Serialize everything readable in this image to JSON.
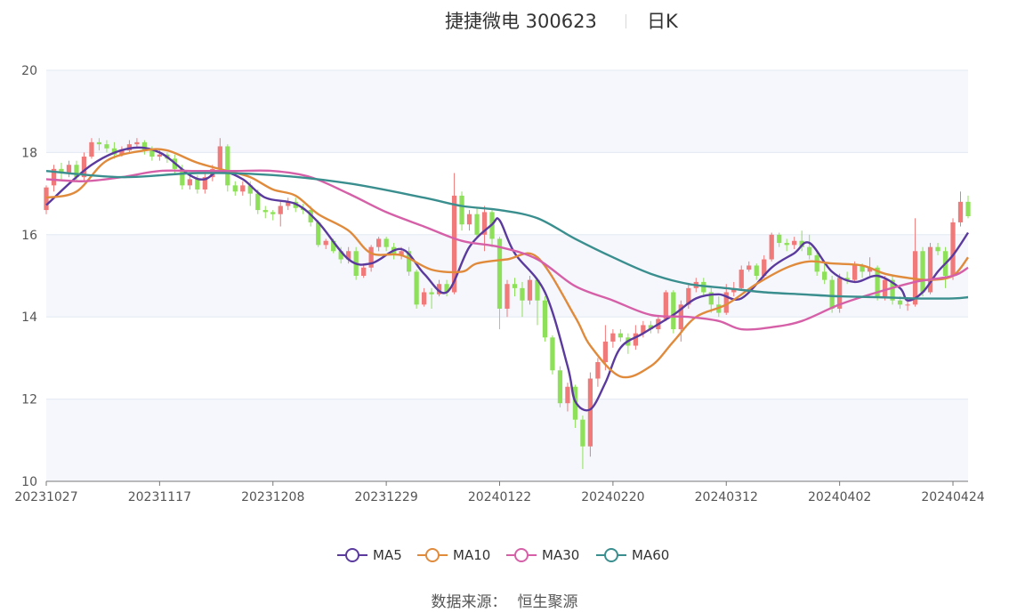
{
  "header": {
    "title": "捷捷微电 300623",
    "period": "日K"
  },
  "legend": [
    {
      "name": "MA5",
      "color": "#5b3a9e"
    },
    {
      "name": "MA10",
      "color": "#e08a3c"
    },
    {
      "name": "MA30",
      "color": "#d660a8"
    },
    {
      "name": "MA60",
      "color": "#3a8e8e"
    }
  ],
  "source": {
    "label": "数据来源：",
    "value": "恒生聚源"
  },
  "chart_data": {
    "type": "candlestick",
    "title": "捷捷微电 300623",
    "ylim": [
      10,
      20
    ],
    "yticks": [
      10,
      12,
      14,
      16,
      18,
      20
    ],
    "xtick_labels": [
      "20231027",
      "20231117",
      "20231208",
      "20231229",
      "20240122",
      "20240220",
      "20240312",
      "20240402",
      "20240424"
    ],
    "xtick_index": [
      0,
      15,
      30,
      45,
      60,
      75,
      90,
      105,
      120
    ],
    "colors": {
      "up": "#f07a7a",
      "down": "#8ee05a",
      "grid": "#e3e8f2",
      "band": "#f5f7fc",
      "axis": "#777777"
    },
    "candles": [
      [
        16.6,
        17.15,
        16.5,
        17.2
      ],
      [
        17.2,
        17.6,
        17.05,
        17.7
      ],
      [
        17.6,
        17.5,
        17.35,
        17.75
      ],
      [
        17.5,
        17.7,
        17.4,
        17.8
      ],
      [
        17.7,
        17.4,
        17.3,
        17.8
      ],
      [
        17.4,
        17.9,
        17.3,
        18.0
      ],
      [
        17.9,
        18.25,
        17.85,
        18.35
      ],
      [
        18.25,
        18.2,
        18.05,
        18.35
      ],
      [
        18.2,
        18.1,
        18.0,
        18.3
      ],
      [
        18.1,
        17.95,
        17.85,
        18.25
      ],
      [
        17.95,
        18.05,
        17.9,
        18.15
      ],
      [
        18.05,
        18.2,
        18.0,
        18.3
      ],
      [
        18.2,
        18.25,
        18.1,
        18.35
      ],
      [
        18.25,
        18.05,
        17.95,
        18.3
      ],
      [
        18.05,
        17.9,
        17.8,
        18.15
      ],
      [
        17.9,
        17.95,
        17.8,
        18.05
      ],
      [
        17.95,
        17.85,
        17.75,
        18.0
      ],
      [
        17.85,
        17.6,
        17.5,
        17.95
      ],
      [
        17.6,
        17.2,
        17.1,
        17.7
      ],
      [
        17.2,
        17.35,
        17.1,
        17.45
      ],
      [
        17.35,
        17.1,
        17.0,
        17.45
      ],
      [
        17.1,
        17.4,
        17.0,
        17.55
      ],
      [
        17.4,
        17.6,
        17.3,
        17.7
      ],
      [
        17.6,
        18.15,
        17.5,
        18.35
      ],
      [
        18.15,
        17.2,
        17.05,
        18.2
      ],
      [
        17.2,
        17.05,
        16.95,
        17.3
      ],
      [
        17.05,
        17.2,
        16.95,
        17.3
      ],
      [
        17.2,
        17.0,
        16.7,
        17.3
      ],
      [
        17.0,
        16.6,
        16.5,
        17.1
      ],
      [
        16.6,
        16.55,
        16.4,
        16.7
      ],
      [
        16.55,
        16.5,
        16.35,
        16.6
      ],
      [
        16.5,
        16.7,
        16.2,
        16.8
      ],
      [
        16.7,
        16.8,
        16.6,
        16.9
      ],
      [
        16.8,
        16.65,
        16.55,
        16.9
      ],
      [
        16.65,
        16.6,
        16.5,
        16.75
      ],
      [
        16.6,
        16.3,
        16.2,
        16.7
      ],
      [
        16.3,
        15.75,
        15.7,
        16.35
      ],
      [
        15.75,
        15.85,
        15.65,
        15.9
      ],
      [
        15.85,
        15.6,
        15.55,
        15.9
      ],
      [
        15.6,
        15.4,
        15.3,
        15.7
      ],
      [
        15.4,
        15.6,
        15.3,
        15.7
      ],
      [
        15.6,
        15.0,
        14.9,
        15.7
      ],
      [
        15.0,
        15.2,
        14.95,
        15.3
      ],
      [
        15.2,
        15.7,
        15.1,
        15.75
      ],
      [
        15.7,
        15.9,
        15.6,
        15.95
      ],
      [
        15.9,
        15.7,
        15.6,
        15.95
      ],
      [
        15.7,
        15.5,
        15.4,
        15.8
      ],
      [
        15.5,
        15.6,
        15.4,
        15.7
      ],
      [
        15.6,
        15.1,
        15.0,
        15.7
      ],
      [
        15.1,
        14.3,
        14.2,
        15.15
      ],
      [
        14.3,
        14.6,
        14.25,
        14.7
      ],
      [
        14.6,
        14.55,
        14.2,
        14.7
      ],
      [
        14.55,
        14.8,
        14.5,
        14.9
      ],
      [
        14.8,
        14.6,
        14.5,
        14.9
      ],
      [
        14.6,
        16.95,
        14.55,
        17.5
      ],
      [
        16.95,
        16.25,
        16.1,
        17.05
      ],
      [
        16.25,
        16.5,
        16.1,
        16.6
      ],
      [
        16.5,
        16.0,
        15.9,
        16.65
      ],
      [
        16.0,
        16.55,
        15.6,
        16.7
      ],
      [
        16.55,
        15.9,
        15.7,
        16.6
      ],
      [
        15.9,
        14.2,
        13.7,
        15.95
      ],
      [
        14.2,
        14.8,
        14.0,
        14.9
      ],
      [
        14.8,
        14.7,
        14.5,
        14.95
      ],
      [
        14.7,
        14.4,
        14.0,
        14.85
      ],
      [
        14.4,
        14.9,
        14.3,
        15.0
      ],
      [
        14.9,
        14.4,
        13.8,
        14.95
      ],
      [
        14.4,
        13.5,
        13.4,
        14.5
      ],
      [
        13.5,
        12.7,
        12.6,
        13.55
      ],
      [
        12.7,
        11.9,
        11.8,
        12.8
      ],
      [
        11.9,
        12.3,
        11.7,
        12.4
      ],
      [
        12.3,
        11.5,
        11.3,
        12.35
      ],
      [
        11.5,
        10.85,
        10.3,
        11.6
      ],
      [
        10.85,
        12.5,
        10.6,
        12.65
      ],
      [
        12.5,
        12.9,
        12.3,
        13.0
      ],
      [
        12.9,
        13.4,
        12.7,
        13.8
      ],
      [
        13.4,
        13.6,
        13.25,
        13.7
      ],
      [
        13.6,
        13.5,
        13.4,
        13.7
      ],
      [
        13.5,
        13.3,
        13.1,
        13.6
      ],
      [
        13.3,
        13.6,
        13.2,
        13.8
      ],
      [
        13.6,
        13.8,
        13.5,
        13.9
      ],
      [
        13.8,
        13.7,
        13.6,
        13.9
      ],
      [
        13.7,
        13.95,
        13.6,
        14.05
      ],
      [
        13.95,
        14.6,
        13.9,
        14.65
      ],
      [
        14.6,
        13.7,
        13.6,
        14.65
      ],
      [
        13.7,
        14.3,
        13.4,
        14.4
      ],
      [
        14.3,
        14.7,
        14.2,
        14.8
      ],
      [
        14.7,
        14.85,
        14.6,
        14.95
      ],
      [
        14.85,
        14.6,
        14.5,
        14.95
      ],
      [
        14.6,
        14.3,
        14.1,
        14.7
      ],
      [
        14.3,
        14.1,
        14.0,
        14.5
      ],
      [
        14.1,
        14.6,
        14.05,
        14.8
      ],
      [
        14.6,
        14.7,
        14.5,
        14.85
      ],
      [
        14.7,
        15.15,
        14.65,
        15.25
      ],
      [
        15.15,
        15.25,
        15.1,
        15.35
      ],
      [
        15.25,
        15.0,
        14.9,
        15.3
      ],
      [
        15.0,
        15.4,
        14.95,
        15.5
      ],
      [
        15.4,
        16.0,
        15.35,
        16.05
      ],
      [
        16.0,
        15.8,
        15.7,
        16.05
      ],
      [
        15.8,
        15.75,
        15.6,
        15.9
      ],
      [
        15.75,
        15.85,
        15.65,
        15.95
      ],
      [
        15.85,
        15.7,
        15.6,
        16.1
      ],
      [
        15.7,
        15.5,
        15.4,
        16.0
      ],
      [
        15.5,
        15.1,
        15.0,
        15.6
      ],
      [
        15.1,
        14.9,
        14.8,
        15.3
      ],
      [
        14.9,
        14.2,
        14.1,
        15.0
      ],
      [
        14.2,
        14.95,
        14.1,
        15.05
      ],
      [
        14.95,
        14.9,
        14.8,
        15.1
      ],
      [
        14.9,
        15.25,
        14.85,
        15.35
      ],
      [
        15.25,
        15.1,
        14.95,
        15.3
      ],
      [
        15.1,
        15.2,
        15.0,
        15.45
      ],
      [
        15.2,
        14.5,
        14.4,
        15.25
      ],
      [
        14.5,
        14.9,
        14.4,
        15.0
      ],
      [
        14.9,
        14.4,
        14.3,
        15.0
      ],
      [
        14.4,
        14.3,
        14.2,
        14.5
      ],
      [
        14.3,
        14.3,
        14.15,
        14.4
      ],
      [
        14.3,
        15.6,
        14.25,
        16.4
      ],
      [
        15.6,
        14.6,
        14.5,
        15.7
      ],
      [
        14.6,
        15.7,
        14.55,
        15.8
      ],
      [
        15.7,
        15.6,
        15.5,
        15.8
      ],
      [
        15.6,
        15.0,
        14.7,
        15.7
      ],
      [
        15.0,
        16.3,
        14.9,
        16.4
      ],
      [
        16.3,
        16.8,
        16.2,
        17.05
      ],
      [
        16.8,
        16.45,
        16.4,
        16.95
      ]
    ],
    "ma": {
      "MA5": [
        [
          0,
          16.72
        ],
        [
          6,
          17.7
        ],
        [
          11,
          18.1
        ],
        [
          15,
          18.0
        ],
        [
          19,
          17.45
        ],
        [
          21,
          17.35
        ],
        [
          23,
          17.55
        ],
        [
          26,
          17.35
        ],
        [
          29,
          16.9
        ],
        [
          33,
          16.75
        ],
        [
          36,
          16.3
        ],
        [
          40,
          15.4
        ],
        [
          43,
          15.3
        ],
        [
          47,
          15.65
        ],
        [
          50,
          15.05
        ],
        [
          53,
          14.6
        ],
        [
          56,
          15.7
        ],
        [
          59,
          16.25
        ],
        [
          60,
          16.35
        ],
        [
          62,
          15.55
        ],
        [
          66,
          14.6
        ],
        [
          69,
          12.8
        ],
        [
          70,
          11.95
        ],
        [
          72,
          11.75
        ],
        [
          74,
          12.4
        ],
        [
          76,
          13.25
        ],
        [
          79,
          13.6
        ],
        [
          83,
          14.05
        ],
        [
          86,
          14.45
        ],
        [
          89,
          14.55
        ],
        [
          92,
          14.45
        ],
        [
          96,
          15.2
        ],
        [
          99,
          15.55
        ],
        [
          101,
          15.8
        ],
        [
          104,
          15.1
        ],
        [
          107,
          14.85
        ],
        [
          110,
          15.0
        ],
        [
          113,
          14.7
        ],
        [
          114,
          14.4
        ],
        [
          116,
          14.6
        ],
        [
          118,
          15.1
        ],
        [
          120,
          15.5
        ],
        [
          122,
          16.05
        ]
      ],
      "MA10": [
        [
          0,
          16.9
        ],
        [
          4,
          17.05
        ],
        [
          8,
          17.8
        ],
        [
          13,
          18.05
        ],
        [
          16,
          18.05
        ],
        [
          20,
          17.75
        ],
        [
          24,
          17.55
        ],
        [
          27,
          17.4
        ],
        [
          30,
          17.1
        ],
        [
          33,
          16.95
        ],
        [
          36,
          16.5
        ],
        [
          40,
          16.1
        ],
        [
          43,
          15.55
        ],
        [
          47,
          15.5
        ],
        [
          51,
          15.15
        ],
        [
          55,
          15.1
        ],
        [
          57,
          15.3
        ],
        [
          61,
          15.4
        ],
        [
          65,
          15.45
        ],
        [
          70,
          14.0
        ],
        [
          72,
          13.3
        ],
        [
          76,
          12.55
        ],
        [
          80,
          12.8
        ],
        [
          83,
          13.4
        ],
        [
          86,
          14.0
        ],
        [
          90,
          14.3
        ],
        [
          94,
          14.8
        ],
        [
          98,
          15.2
        ],
        [
          101,
          15.35
        ],
        [
          104,
          15.3
        ],
        [
          108,
          15.25
        ],
        [
          111,
          15.05
        ],
        [
          114,
          14.95
        ],
        [
          117,
          14.9
        ],
        [
          120,
          15.0
        ],
        [
          122,
          15.45
        ]
      ],
      "MA30": [
        [
          0,
          17.35
        ],
        [
          5,
          17.3
        ],
        [
          10,
          17.4
        ],
        [
          15,
          17.55
        ],
        [
          20,
          17.55
        ],
        [
          25,
          17.55
        ],
        [
          30,
          17.55
        ],
        [
          35,
          17.4
        ],
        [
          40,
          17.0
        ],
        [
          45,
          16.55
        ],
        [
          50,
          16.2
        ],
        [
          55,
          15.85
        ],
        [
          60,
          15.7
        ],
        [
          65,
          15.4
        ],
        [
          70,
          14.75
        ],
        [
          75,
          14.4
        ],
        [
          80,
          14.05
        ],
        [
          85,
          14.0
        ],
        [
          89,
          13.9
        ],
        [
          92,
          13.7
        ],
        [
          96,
          13.75
        ],
        [
          100,
          13.9
        ],
        [
          105,
          14.3
        ],
        [
          110,
          14.6
        ],
        [
          115,
          14.85
        ],
        [
          120,
          15.0
        ],
        [
          122,
          15.2
        ]
      ],
      "MA60": [
        [
          0,
          17.55
        ],
        [
          10,
          17.4
        ],
        [
          20,
          17.5
        ],
        [
          30,
          17.45
        ],
        [
          40,
          17.25
        ],
        [
          50,
          16.9
        ],
        [
          55,
          16.7
        ],
        [
          60,
          16.6
        ],
        [
          65,
          16.4
        ],
        [
          70,
          15.9
        ],
        [
          75,
          15.45
        ],
        [
          80,
          15.05
        ],
        [
          85,
          14.8
        ],
        [
          90,
          14.7
        ],
        [
          95,
          14.6
        ],
        [
          100,
          14.55
        ],
        [
          105,
          14.5
        ],
        [
          110,
          14.48
        ],
        [
          115,
          14.45
        ],
        [
          120,
          14.45
        ],
        [
          122,
          14.48
        ]
      ]
    }
  }
}
